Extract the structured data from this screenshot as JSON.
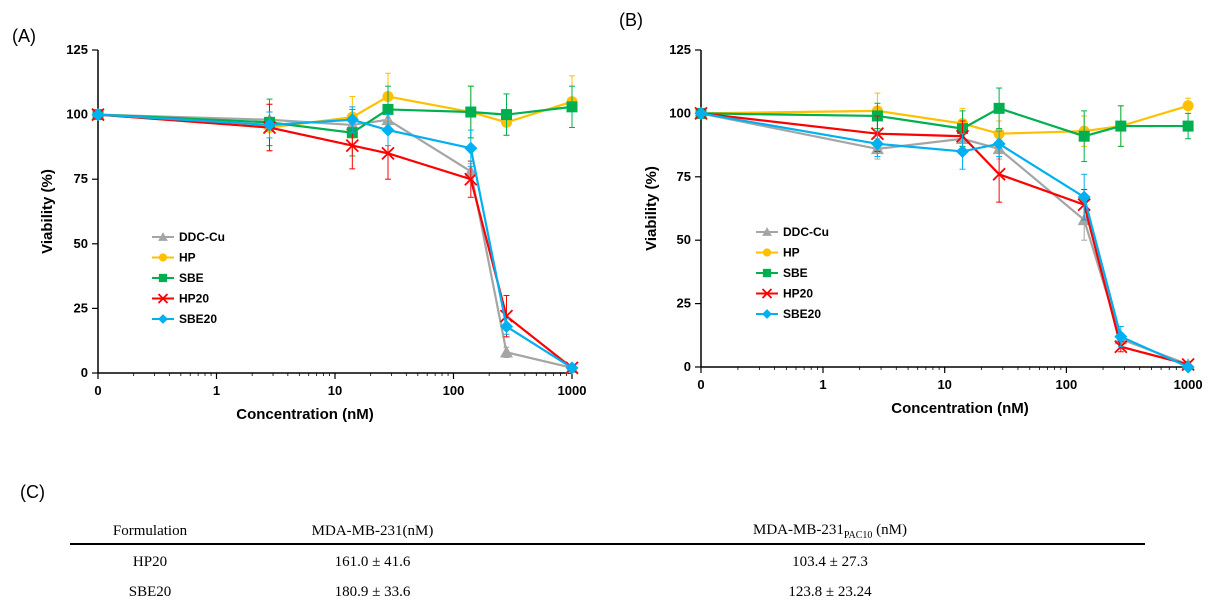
{
  "panel_labels": {
    "a": "(A)",
    "b": "(B)",
    "c": "(C)"
  },
  "chart_data": [
    {
      "panel": "(A)",
      "type": "line",
      "xlabel": "Concentration (nM)",
      "ylabel": "Viability (%)",
      "x_scale": "log",
      "xlim_display": [
        0,
        1000
      ],
      "x_ticks": [
        "0",
        "1",
        "10",
        "100",
        "1000"
      ],
      "ylim": [
        0,
        125
      ],
      "y_ticks": [
        0,
        25,
        50,
        75,
        100,
        125
      ],
      "grid": false,
      "legend_position": "center-left",
      "series": [
        {
          "name": "DDC-Cu",
          "color": "#a5a5a5",
          "marker": "triangle",
          "x": [
            0,
            2.8,
            14,
            28,
            140,
            280,
            1000
          ],
          "y": [
            100,
            98,
            96,
            98,
            78,
            8,
            2
          ],
          "err": [
            0,
            3,
            3,
            2,
            3,
            2,
            1
          ]
        },
        {
          "name": "HP",
          "color": "#ffc000",
          "marker": "circle",
          "x": [
            0,
            2.8,
            14,
            28,
            140,
            280,
            1000
          ],
          "y": [
            100,
            95,
            99,
            107,
            101,
            97,
            105
          ],
          "err": [
            0,
            9,
            8,
            9,
            10,
            5,
            10
          ]
        },
        {
          "name": "SBE",
          "color": "#00b050",
          "marker": "square",
          "x": [
            0,
            2.8,
            14,
            28,
            140,
            280,
            1000
          ],
          "y": [
            100,
            97,
            93,
            102,
            101,
            100,
            103
          ],
          "err": [
            0,
            9,
            9,
            9,
            10,
            8,
            8
          ]
        },
        {
          "name": "HP20",
          "color": "#ff0000",
          "marker": "x",
          "x": [
            0,
            2.8,
            14,
            28,
            140,
            280,
            1000
          ],
          "y": [
            100,
            95,
            88,
            85,
            75,
            22,
            2
          ],
          "err": [
            0,
            9,
            9,
            10,
            7,
            8,
            1
          ]
        },
        {
          "name": "SBE20",
          "color": "#00b0f0",
          "marker": "diamond",
          "x": [
            0,
            2.8,
            14,
            28,
            140,
            280,
            1000
          ],
          "y": [
            100,
            96,
            98,
            94,
            87,
            18,
            2
          ],
          "err": [
            0,
            5,
            5,
            6,
            7,
            3,
            1
          ]
        }
      ]
    },
    {
      "panel": "(B)",
      "type": "line",
      "xlabel": "Concentration (nM)",
      "ylabel": "Viability (%)",
      "x_scale": "log",
      "xlim_display": [
        0,
        1000
      ],
      "x_ticks": [
        "0",
        "1",
        "10",
        "100",
        "1000"
      ],
      "ylim": [
        0,
        125
      ],
      "y_ticks": [
        0,
        25,
        50,
        75,
        100,
        125
      ],
      "grid": false,
      "legend_position": "center-left",
      "series": [
        {
          "name": "DDC-Cu",
          "color": "#a5a5a5",
          "marker": "triangle",
          "x": [
            0,
            2.8,
            14,
            28,
            140,
            280,
            1000
          ],
          "y": [
            100,
            86,
            90,
            86,
            58,
            11,
            1
          ],
          "err": [
            0,
            4,
            3,
            4,
            8,
            2,
            1
          ]
        },
        {
          "name": "HP",
          "color": "#ffc000",
          "marker": "circle",
          "x": [
            0,
            2.8,
            14,
            28,
            140,
            280,
            1000
          ],
          "y": [
            100,
            101,
            96,
            92,
            93,
            95,
            103
          ],
          "err": [
            0,
            7,
            6,
            5,
            6,
            8,
            3
          ]
        },
        {
          "name": "SBE",
          "color": "#00b050",
          "marker": "square",
          "x": [
            0,
            2.8,
            14,
            28,
            140,
            280,
            1000
          ],
          "y": [
            100,
            99,
            94,
            102,
            91,
            95,
            95
          ],
          "err": [
            0,
            5,
            7,
            8,
            10,
            8,
            5
          ]
        },
        {
          "name": "HP20",
          "color": "#ff0000",
          "marker": "x",
          "x": [
            0,
            2.8,
            14,
            28,
            140,
            280,
            1000
          ],
          "y": [
            100,
            92,
            91,
            76,
            64,
            8,
            1
          ],
          "err": [
            0,
            7,
            6,
            11,
            6,
            2,
            1
          ]
        },
        {
          "name": "SBE20",
          "color": "#00b0f0",
          "marker": "diamond",
          "x": [
            0,
            2.8,
            14,
            28,
            140,
            280,
            1000
          ],
          "y": [
            100,
            88,
            85,
            88,
            67,
            12,
            0
          ],
          "err": [
            0,
            5,
            7,
            5,
            9,
            4,
            1
          ]
        }
      ]
    }
  ],
  "table": {
    "headers": [
      "Formulation",
      "MDA-MB-231(nM)",
      "MDA-MB-231",
      "PAC10",
      "(nM)"
    ],
    "rows": [
      [
        "HP20",
        "161.0 ± 41.6",
        "103.4 ± 27.3"
      ],
      [
        "SBE20",
        "180.9 ± 33.6",
        "123.8 ± 23.24"
      ]
    ]
  }
}
